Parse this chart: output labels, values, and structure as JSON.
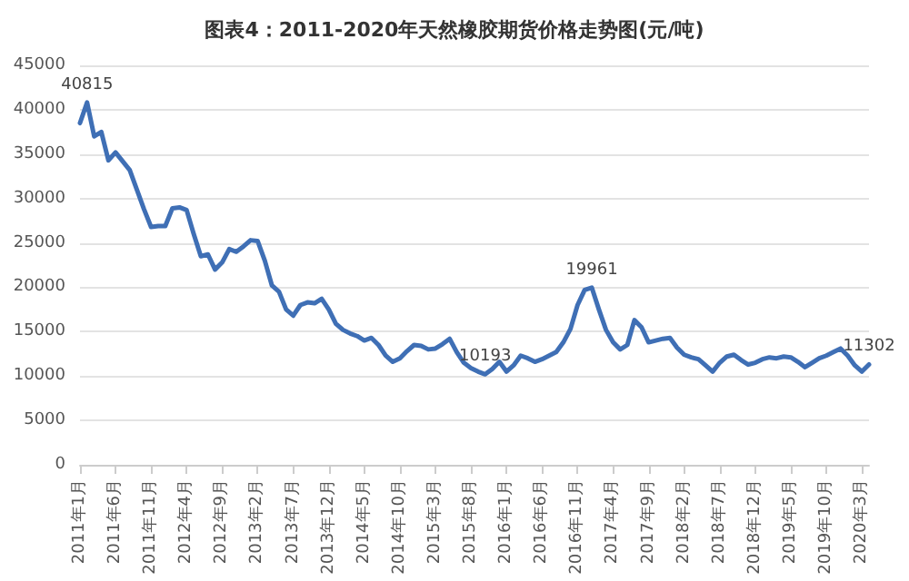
{
  "chart_data": {
    "type": "line",
    "title": "图表4：2011-2020年天然橡胶期货价格走势图(元/吨)",
    "categories": [
      "2011年1月",
      null,
      null,
      null,
      null,
      "2011年6月",
      null,
      null,
      null,
      null,
      "2011年11月",
      null,
      null,
      null,
      null,
      "2012年4月",
      null,
      null,
      null,
      null,
      "2012年9月",
      null,
      null,
      null,
      null,
      "2013年2月",
      null,
      null,
      null,
      null,
      "2013年7月",
      null,
      null,
      null,
      null,
      "2013年12月",
      null,
      null,
      null,
      null,
      "2014年5月",
      null,
      null,
      null,
      null,
      "2014年10月",
      null,
      null,
      null,
      null,
      "2015年3月",
      null,
      null,
      null,
      null,
      "2015年8月",
      null,
      null,
      null,
      null,
      "2016年1月",
      null,
      null,
      null,
      null,
      "2016年6月",
      null,
      null,
      null,
      null,
      "2016年11月",
      null,
      null,
      null,
      null,
      "2017年4月",
      null,
      null,
      null,
      null,
      "2017年9月",
      null,
      null,
      null,
      null,
      "2018年2月",
      null,
      null,
      null,
      null,
      "2018年7月",
      null,
      null,
      null,
      null,
      "2018年12月",
      null,
      null,
      null,
      null,
      "2019年5月",
      null,
      null,
      null,
      null,
      "2019年10月",
      null,
      null,
      null,
      null,
      "2020年3月",
      null
    ],
    "series": [
      {
        "color": "#3f6fb5",
        "values": [
          38500,
          40815,
          37000,
          37500,
          34300,
          35200,
          34200,
          33200,
          31000,
          28800,
          26800,
          26900,
          26900,
          28900,
          29000,
          28700,
          26000,
          23500,
          23700,
          22000,
          22800,
          24300,
          24000,
          24600,
          25300,
          25200,
          23000,
          20200,
          19500,
          17500,
          16800,
          18000,
          18300,
          18200,
          18700,
          17500,
          15900,
          15200,
          14800,
          14500,
          14000,
          14300,
          13500,
          12300,
          11600,
          12000,
          12800,
          13500,
          13400,
          13000,
          13100,
          13600,
          14200,
          12700,
          11500,
          10900,
          10500,
          10193,
          10800,
          11600,
          10500,
          11200,
          12300,
          12000,
          11600,
          11900,
          12300,
          12700,
          13800,
          15300,
          18000,
          19700,
          19961,
          17500,
          15200,
          13800,
          13000,
          13500,
          16300,
          15500,
          13800,
          14000,
          14200,
          14300,
          13200,
          12400,
          12100,
          11900,
          11200,
          10500,
          11500,
          12200,
          12400,
          11800,
          11300,
          11500,
          11900,
          12100,
          12000,
          12200,
          12100,
          11600,
          11000,
          11500,
          12000,
          12300,
          12700,
          13100,
          12300,
          11200,
          10500,
          11302
        ],
        "value_labels": [
          null,
          "40815",
          null,
          null,
          null,
          null,
          null,
          null,
          null,
          null,
          null,
          null,
          null,
          null,
          null,
          null,
          null,
          null,
          null,
          null,
          null,
          null,
          null,
          null,
          null,
          null,
          null,
          null,
          null,
          null,
          null,
          null,
          null,
          null,
          null,
          null,
          null,
          null,
          null,
          null,
          null,
          null,
          null,
          null,
          null,
          null,
          null,
          null,
          null,
          null,
          null,
          null,
          null,
          null,
          null,
          null,
          null,
          "10193",
          null,
          null,
          null,
          null,
          null,
          null,
          null,
          null,
          null,
          null,
          null,
          null,
          null,
          null,
          "19961",
          null,
          null,
          null,
          null,
          null,
          null,
          null,
          null,
          null,
          null,
          null,
          null,
          null,
          null,
          null,
          null,
          null,
          null,
          null,
          null,
          null,
          null,
          null,
          null,
          null,
          null,
          null,
          null,
          null,
          null,
          null,
          null,
          null,
          null,
          null,
          null,
          null,
          null,
          "11302"
        ]
      }
    ],
    "ylim": [
      0,
      45000
    ],
    "yticks": [
      0,
      5000,
      10000,
      15000,
      20000,
      25000,
      30000,
      35000,
      40000,
      45000
    ],
    "grid": "y",
    "marker": "none",
    "line_style": "solid"
  }
}
